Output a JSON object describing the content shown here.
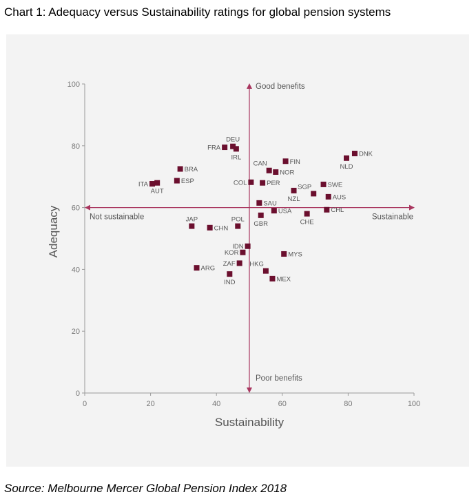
{
  "heading": "Chart 1: Adequacy versus Sustainability ratings for global pension systems",
  "source": "Source: Melbourne Mercer Global Pension Index 2018",
  "colors": {
    "marker": "#6b0f2e",
    "axis": "#a9365f",
    "panel": "#f3f3f3",
    "frame": "#9a9a9a"
  },
  "chart_data": {
    "type": "scatter",
    "xlabel": "Sustainability",
    "ylabel": "Adequacy",
    "xlim": [
      0,
      100
    ],
    "ylim": [
      0,
      100
    ],
    "xticks": [
      "0",
      "20",
      "40",
      "60",
      "80",
      "100"
    ],
    "yticks": [
      "0",
      "20",
      "40",
      "60",
      "80",
      "100"
    ],
    "grid": false,
    "quadrant_axes": {
      "x": 50,
      "y": 60
    },
    "annotations": {
      "top": "Good benefits",
      "bottom": "Poor benefits",
      "left": "Not sustainable",
      "right": "Sustainable"
    },
    "points": [
      {
        "label": "DEU",
        "x": 45.0,
        "y": 79.8,
        "pos": "above"
      },
      {
        "label": "FRA",
        "x": 42.5,
        "y": 79.5,
        "pos": "left"
      },
      {
        "label": "IRL",
        "x": 46.0,
        "y": 79.0,
        "pos": "below"
      },
      {
        "label": "FIN",
        "x": 61.0,
        "y": 75.0,
        "pos": "right"
      },
      {
        "label": "DNK",
        "x": 82.0,
        "y": 77.5,
        "pos": "right"
      },
      {
        "label": "NLD",
        "x": 79.5,
        "y": 76.0,
        "pos": "below"
      },
      {
        "label": "CAN",
        "x": 56.0,
        "y": 72.0,
        "pos": "above-left"
      },
      {
        "label": "NOR",
        "x": 58.0,
        "y": 71.5,
        "pos": "right"
      },
      {
        "label": "BRA",
        "x": 29.0,
        "y": 72.5,
        "pos": "right"
      },
      {
        "label": "ESP",
        "x": 28.0,
        "y": 68.7,
        "pos": "right"
      },
      {
        "label": "ITA",
        "x": 20.5,
        "y": 67.7,
        "pos": "left"
      },
      {
        "label": "AUT",
        "x": 22.0,
        "y": 68.0,
        "pos": "below"
      },
      {
        "label": "COL",
        "x": 50.5,
        "y": 68.2,
        "pos": "left"
      },
      {
        "label": "PER",
        "x": 54.0,
        "y": 68.0,
        "pos": "right"
      },
      {
        "label": "SGP",
        "x": 69.5,
        "y": 64.5,
        "pos": "above-left"
      },
      {
        "label": "SWE",
        "x": 72.5,
        "y": 67.5,
        "pos": "right"
      },
      {
        "label": "NZL",
        "x": 63.5,
        "y": 65.5,
        "pos": "below"
      },
      {
        "label": "AUS",
        "x": 74.0,
        "y": 63.5,
        "pos": "right"
      },
      {
        "label": "SAU",
        "x": 53.0,
        "y": 61.5,
        "pos": "right"
      },
      {
        "label": "USA",
        "x": 57.5,
        "y": 59.0,
        "pos": "right"
      },
      {
        "label": "CHL",
        "x": 73.5,
        "y": 59.3,
        "pos": "right"
      },
      {
        "label": "GBR",
        "x": 53.5,
        "y": 57.5,
        "pos": "below"
      },
      {
        "label": "CHE",
        "x": 67.5,
        "y": 58.0,
        "pos": "below"
      },
      {
        "label": "JAP",
        "x": 32.5,
        "y": 54.0,
        "pos": "above"
      },
      {
        "label": "CHN",
        "x": 38.0,
        "y": 53.5,
        "pos": "right"
      },
      {
        "label": "POL",
        "x": 46.5,
        "y": 54.0,
        "pos": "above"
      },
      {
        "label": "IDN",
        "x": 49.5,
        "y": 47.5,
        "pos": "left"
      },
      {
        "label": "KOR",
        "x": 48.0,
        "y": 45.5,
        "pos": "left"
      },
      {
        "label": "MYS",
        "x": 60.5,
        "y": 45.0,
        "pos": "right"
      },
      {
        "label": "ZAF",
        "x": 47.0,
        "y": 42.0,
        "pos": "left"
      },
      {
        "label": "ARG",
        "x": 34.0,
        "y": 40.5,
        "pos": "right"
      },
      {
        "label": "HKG",
        "x": 55.0,
        "y": 39.5,
        "pos": "above-left"
      },
      {
        "label": "IND",
        "x": 44.0,
        "y": 38.5,
        "pos": "below"
      },
      {
        "label": "MEX",
        "x": 57.0,
        "y": 37.0,
        "pos": "right"
      }
    ]
  }
}
